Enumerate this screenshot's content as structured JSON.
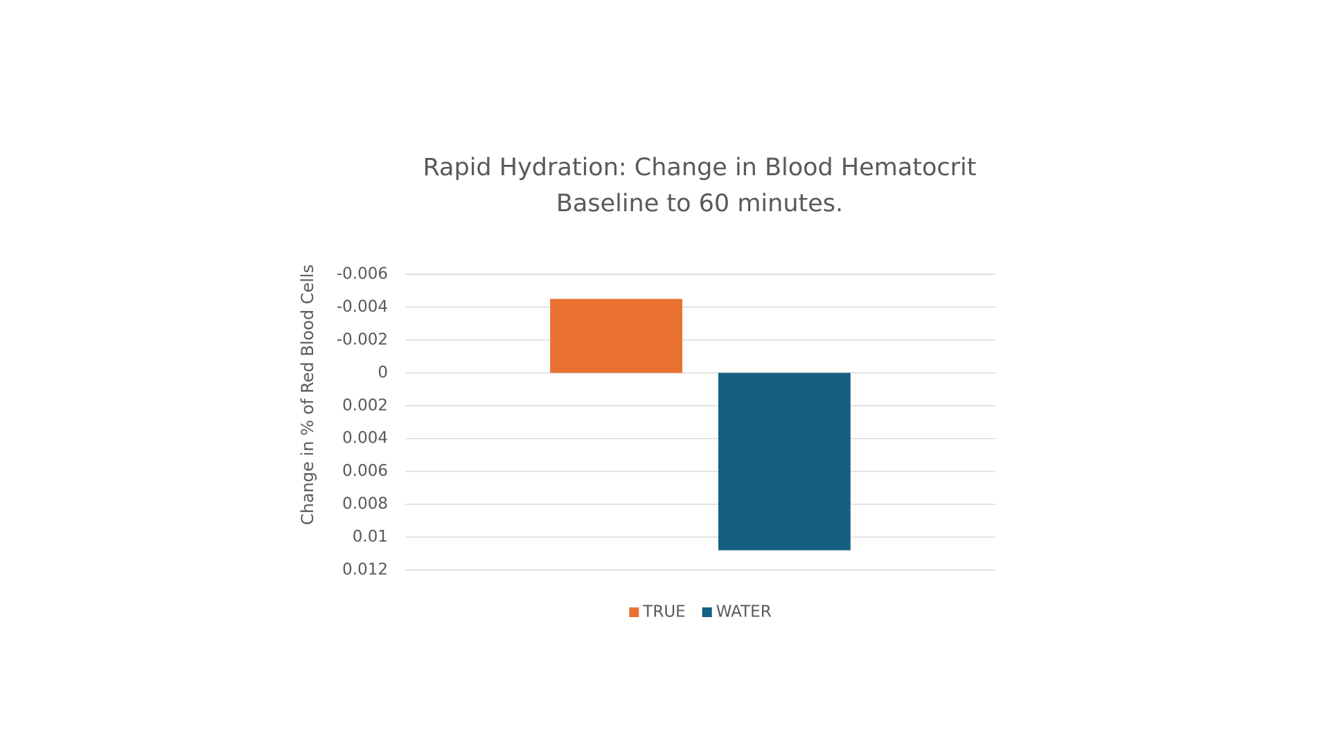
{
  "chart_data": {
    "type": "bar",
    "title": [
      "Rapid Hydration: Change in Blood Hematocrit",
      "Baseline to 60 minutes."
    ],
    "y_label": "Change in % of Red Blood Cells",
    "categories": [
      null
    ],
    "series": [
      {
        "name": "TRUE",
        "color": "#e97132",
        "values": [
          -0.0045
        ]
      },
      {
        "name": "WATER",
        "color": "#156082",
        "values": [
          0.0108
        ]
      }
    ],
    "ylim": [
      0.012,
      -0.006
    ],
    "yticks": [
      -0.006,
      -0.004,
      -0.002,
      0,
      0.002,
      0.004,
      0.006,
      0.008,
      0.01,
      0.012
    ],
    "grid": true,
    "legend": "bottom"
  }
}
